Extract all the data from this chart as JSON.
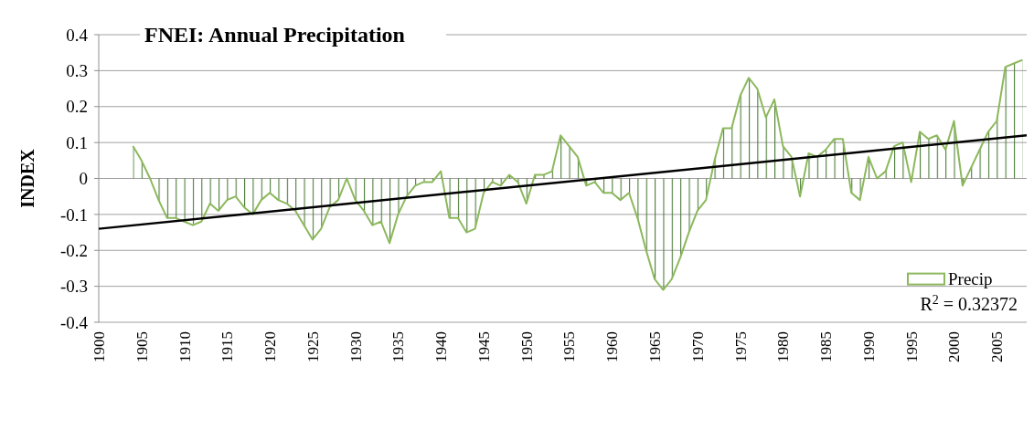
{
  "chart_data": {
    "type": "area",
    "title": "FNEI: Annual Precipitation",
    "ylabel": "INDEX",
    "x": [
      1904,
      1905,
      1906,
      1907,
      1908,
      1909,
      1910,
      1911,
      1912,
      1913,
      1914,
      1915,
      1916,
      1917,
      1918,
      1919,
      1920,
      1921,
      1922,
      1923,
      1924,
      1925,
      1926,
      1927,
      1928,
      1929,
      1930,
      1931,
      1932,
      1933,
      1934,
      1935,
      1936,
      1937,
      1938,
      1939,
      1940,
      1941,
      1942,
      1943,
      1944,
      1945,
      1946,
      1947,
      1948,
      1949,
      1950,
      1951,
      1952,
      1953,
      1954,
      1955,
      1956,
      1957,
      1958,
      1959,
      1960,
      1961,
      1962,
      1963,
      1964,
      1965,
      1966,
      1967,
      1968,
      1969,
      1970,
      1971,
      1972,
      1973,
      1974,
      1975,
      1976,
      1977,
      1978,
      1979,
      1980,
      1981,
      1982,
      1983,
      1984,
      1985,
      1986,
      1987,
      1988,
      1989,
      1990,
      1991,
      1992,
      1993,
      1994,
      1995,
      1996,
      1997,
      1998,
      1999,
      2000,
      2001,
      2002,
      2003,
      2004,
      2005,
      2006,
      2007,
      2008
    ],
    "series": [
      {
        "name": "Precip",
        "color": "#8cb85c",
        "values": [
          0.09,
          0.05,
          0.0,
          -0.06,
          -0.11,
          -0.11,
          -0.12,
          -0.13,
          -0.12,
          -0.07,
          -0.09,
          -0.06,
          -0.05,
          -0.08,
          -0.1,
          -0.06,
          -0.04,
          -0.06,
          -0.07,
          -0.09,
          -0.13,
          -0.17,
          -0.14,
          -0.08,
          -0.06,
          0.0,
          -0.06,
          -0.09,
          -0.13,
          -0.12,
          -0.18,
          -0.1,
          -0.05,
          -0.02,
          -0.01,
          -0.01,
          0.02,
          -0.11,
          -0.11,
          -0.15,
          -0.14,
          -0.04,
          -0.01,
          -0.02,
          0.01,
          -0.01,
          -0.07,
          0.01,
          0.01,
          0.02,
          0.12,
          0.09,
          0.06,
          -0.02,
          -0.01,
          -0.04,
          -0.04,
          -0.06,
          -0.04,
          -0.11,
          -0.2,
          -0.28,
          -0.31,
          -0.28,
          -0.22,
          -0.15,
          -0.09,
          -0.06,
          0.05,
          0.14,
          0.14,
          0.23,
          0.28,
          0.25,
          0.17,
          0.22,
          0.09,
          0.06,
          -0.05,
          0.07,
          0.06,
          0.08,
          0.11,
          0.11,
          -0.04,
          -0.06,
          0.06,
          0.0,
          0.02,
          0.09,
          0.1,
          -0.01,
          0.13,
          0.11,
          0.12,
          0.08,
          0.16,
          -0.02,
          0.03,
          0.08,
          0.13,
          0.16,
          0.31,
          0.32,
          0.33
        ]
      },
      {
        "type": "line",
        "color": "#000000",
        "x": [
          1900,
          2008.5
        ],
        "values": [
          -0.14,
          0.12
        ]
      }
    ],
    "xlim": [
      1900,
      2008.5
    ],
    "xticks": [
      1900,
      1905,
      1910,
      1915,
      1920,
      1925,
      1930,
      1935,
      1940,
      1945,
      1950,
      1955,
      1960,
      1965,
      1970,
      1975,
      1980,
      1985,
      1990,
      1995,
      2000,
      2005
    ],
    "ylim": [
      -0.4,
      0.4
    ],
    "yticks": [
      -0.4,
      -0.3,
      -0.2,
      -0.1,
      0,
      0.1,
      0.2,
      0.3,
      0.4
    ],
    "grid": "y",
    "legend": "bottom right",
    "annotations": [
      "R$^{2}$ = 0.32372"
    ]
  }
}
